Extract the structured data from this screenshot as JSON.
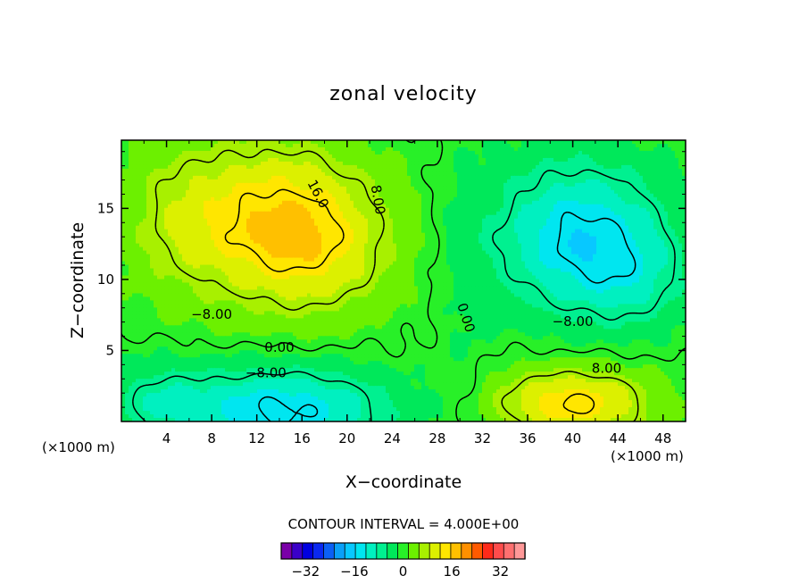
{
  "chart_data": {
    "type": "heatmap",
    "title": "zonal velocity",
    "xlabel": "X−coordinate",
    "ylabel": "Z−coordinate",
    "x_unit_left": "(×1000 m)",
    "x_unit_right": "(×1000 m)",
    "xlim": [
      0,
      50
    ],
    "ylim": [
      0,
      19.8
    ],
    "x_ticks": [
      4,
      8,
      12,
      16,
      20,
      24,
      28,
      32,
      36,
      40,
      44,
      48
    ],
    "y_ticks": [
      5,
      10,
      15
    ],
    "grid": false,
    "contour_interval_text": "CONTOUR INTERVAL = 4.000E+00",
    "contour_labels": [
      {
        "text": "16.0",
        "x": 17.4,
        "y": 16.0,
        "rot": 62
      },
      {
        "text": "8.00",
        "x": 22.7,
        "y": 15.6,
        "rot": 80
      },
      {
        "text": "−8.00",
        "x": 8.0,
        "y": 7.5,
        "rot": 0
      },
      {
        "text": "0.00",
        "x": 14.0,
        "y": 5.2,
        "rot": 0
      },
      {
        "text": "−8.00",
        "x": 12.8,
        "y": 3.4,
        "rot": 0
      },
      {
        "text": "0.00",
        "x": 30.5,
        "y": 7.3,
        "rot": 72
      },
      {
        "text": "−8.00",
        "x": 40.0,
        "y": 7.0,
        "rot": 0
      },
      {
        "text": "8.00",
        "x": 43.0,
        "y": 3.7,
        "rot": 0
      }
    ],
    "colorbar": {
      "tick_labels": [
        "−32",
        "−16",
        "0",
        "16",
        "32"
      ],
      "tick_values": [
        -32,
        -16,
        0,
        16,
        32
      ],
      "levels": [
        -40,
        40
      ],
      "colors": [
        "#7a00a8",
        "#3a00c8",
        "#0000e0",
        "#0a28f0",
        "#0b60f5",
        "#0aa0f8",
        "#08c8ff",
        "#00e6f0",
        "#00f0c0",
        "#00f090",
        "#00e85a",
        "#28f028",
        "#6cf000",
        "#a8f000",
        "#dcf000",
        "#ffe600",
        "#ffc000",
        "#ff9000",
        "#ff5a00",
        "#ff2a1a",
        "#ff4c4c",
        "#ff7070",
        "#ff9898"
      ]
    },
    "value_field": {
      "description_levels": "values in contour units",
      "features": [
        {
          "kind": "max",
          "x": 13.5,
          "y": 14.5,
          "value": 18
        },
        {
          "kind": "min",
          "x": 40.0,
          "y": 13.8,
          "value": -18
        },
        {
          "kind": "min",
          "x": 14.0,
          "y": 1.0,
          "value": -18
        },
        {
          "kind": "max",
          "x": 40.0,
          "y": 1.0,
          "value": 16
        }
      ]
    }
  }
}
